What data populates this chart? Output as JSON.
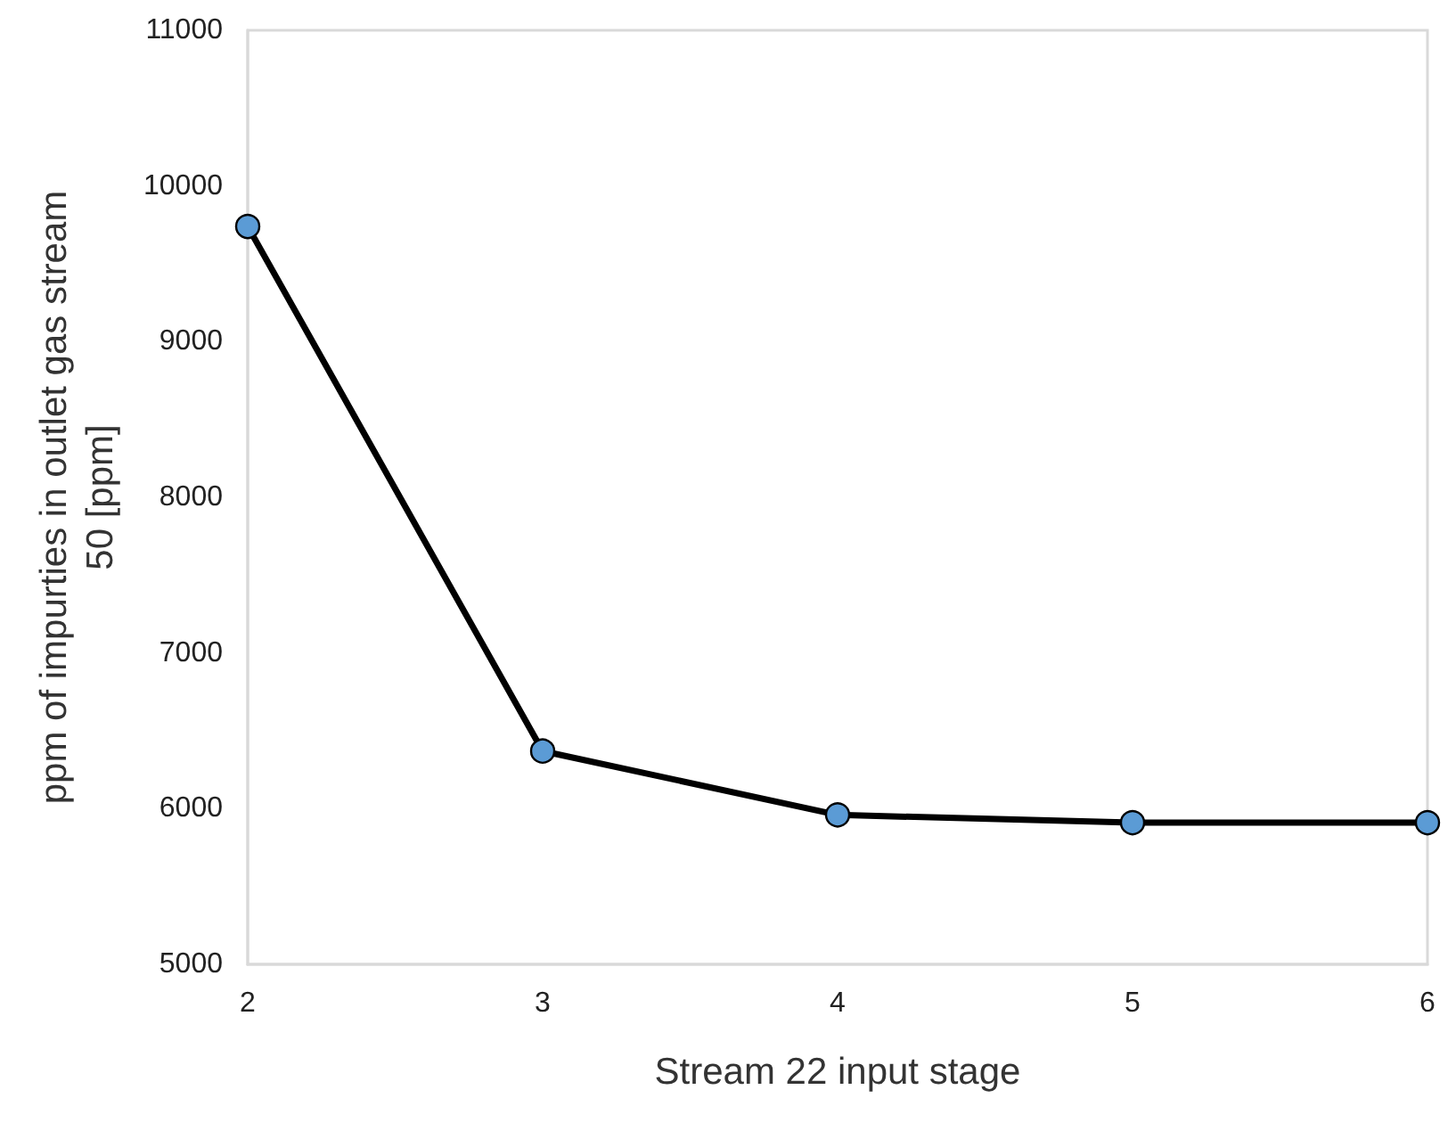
{
  "chart_data": {
    "type": "line",
    "xlabel": "Stream 22 input stage",
    "ylabel": "ppm of impurties in outlet gas stream\n50 [ppm]",
    "x": [
      2,
      3,
      4,
      5,
      6
    ],
    "series": [
      {
        "color": "#000000",
        "values": [
          9740,
          6370,
          5960,
          5910,
          5910
        ]
      }
    ],
    "xlim": [
      2,
      6
    ],
    "xticks": [
      2,
      3,
      4,
      5,
      6
    ],
    "ylim": [
      5000,
      11000
    ],
    "yticks": [
      5000,
      6000,
      7000,
      8000,
      9000,
      10000,
      11000
    ],
    "grid": false,
    "marker": "circle",
    "line_style": "solid"
  }
}
